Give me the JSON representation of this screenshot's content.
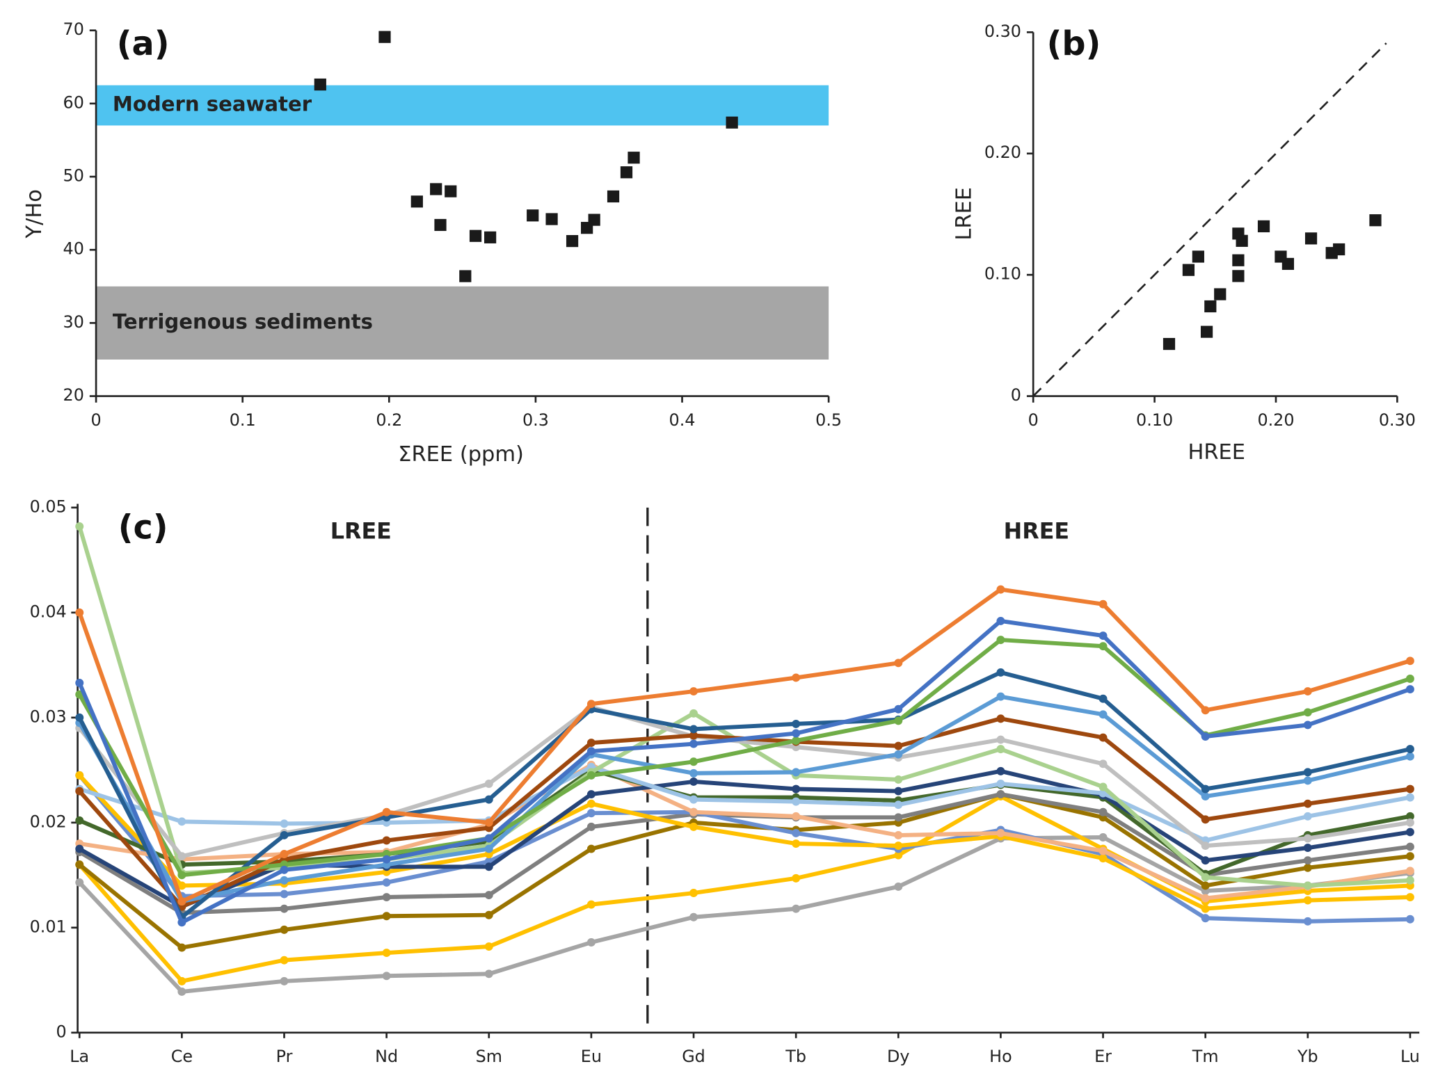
{
  "chart_data": [
    {
      "type": "scatter",
      "panel_label": "(a)",
      "xlabel": "ΣREE (ppm)",
      "ylabel": "Y/Ho",
      "xlim": [
        0,
        0.5
      ],
      "xticks": [
        0,
        0.1,
        0.2,
        0.3,
        0.4,
        0.5
      ],
      "ylim": [
        20,
        70
      ],
      "yticks": [
        20,
        30,
        40,
        50,
        60,
        70
      ],
      "color": "#1a1a1a",
      "bands": [
        {
          "label": "Modern seawater",
          "range": [
            57,
            62.5
          ],
          "color": "#4fc3f0"
        },
        {
          "label": "Terrigenous sediments",
          "range": [
            25,
            35
          ],
          "color": "#a6a6a6"
        }
      ],
      "x": [
        0.153,
        0.197,
        0.219,
        0.232,
        0.235,
        0.242,
        0.252,
        0.259,
        0.269,
        0.298,
        0.311,
        0.325,
        0.335,
        0.34,
        0.353,
        0.362,
        0.367,
        0.434
      ],
      "values": [
        62.6,
        69.1,
        46.6,
        48.3,
        43.4,
        48.0,
        36.4,
        41.9,
        41.7,
        44.7,
        44.2,
        41.2,
        43.0,
        44.1,
        47.3,
        50.6,
        52.6,
        57.4
      ]
    },
    {
      "type": "scatter",
      "panel_label": "(b)",
      "xlabel": "HREE",
      "ylabel": "LREE",
      "xlim": [
        0,
        0.3
      ],
      "xticks": [
        0,
        {
          "value": 0.1,
          "label": "0.10"
        },
        {
          "value": 0.2,
          "label": "0.20"
        },
        {
          "value": 0.3,
          "label": "0.30"
        }
      ],
      "ylim": [
        0,
        0.3
      ],
      "yticks": [
        0,
        {
          "value": 0.1,
          "label": "0.10"
        },
        {
          "value": 0.2,
          "label": "0.20"
        },
        {
          "value": 0.3,
          "label": "0.30"
        }
      ],
      "color": "#1a1a1a",
      "identity_line": true,
      "x": [
        0.112,
        0.128,
        0.136,
        0.143,
        0.146,
        0.154,
        0.169,
        0.169,
        0.169,
        0.172,
        0.19,
        0.204,
        0.21,
        0.229,
        0.246,
        0.252,
        0.282
      ],
      "values": [
        0.043,
        0.104,
        0.115,
        0.053,
        0.074,
        0.084,
        0.099,
        0.112,
        0.134,
        0.128,
        0.14,
        0.115,
        0.109,
        0.13,
        0.118,
        0.121,
        0.145
      ]
    },
    {
      "type": "line",
      "panel_label": "(c)",
      "annotations": [
        "LREE",
        "HREE"
      ],
      "categories": [
        "La",
        "Ce",
        "Pr",
        "Nd",
        "Sm",
        "Eu",
        "Gd",
        "Tb",
        "Dy",
        "Ho",
        "Er",
        "Tm",
        "Yb",
        "Lu"
      ],
      "ylim": [
        0,
        0.05
      ],
      "yticks": [
        0,
        0.01,
        0.02,
        0.03,
        0.04,
        0.05
      ],
      "series": [
        {
          "color": "#a5a5a5",
          "values": [
            0.0143,
            0.0039,
            0.0049,
            0.0054,
            0.0056,
            0.0086,
            0.011,
            0.0118,
            0.0139,
            0.0185,
            0.0186,
            0.0135,
            0.014,
            0.0152
          ]
        },
        {
          "color": "#ffc000",
          "values": [
            0.016,
            0.0049,
            0.0069,
            0.0076,
            0.0082,
            0.0122,
            0.0133,
            0.0147,
            0.0169,
            0.0225,
            0.0175,
            0.0125,
            0.0135,
            0.014
          ]
        },
        {
          "color": "#997300",
          "values": [
            0.016,
            0.0081,
            0.0098,
            0.0111,
            0.0112,
            0.0175,
            0.02,
            0.0193,
            0.02,
            0.0227,
            0.0205,
            0.014,
            0.0157,
            0.0168
          ]
        },
        {
          "color": "#7f7f7f",
          "values": [
            0.0172,
            0.0114,
            0.0118,
            0.0129,
            0.0131,
            0.0196,
            0.0208,
            0.0205,
            0.0205,
            0.0227,
            0.021,
            0.015,
            0.0164,
            0.0177
          ]
        },
        {
          "color": "#698ed0",
          "values": [
            0.0245,
            0.013,
            0.0132,
            0.0143,
            0.0163,
            0.0209,
            0.021,
            0.019,
            0.0175,
            0.0193,
            0.017,
            0.0109,
            0.0106,
            0.0108
          ]
        },
        {
          "color": "#ffc000",
          "values": [
            0.0245,
            0.014,
            0.0142,
            0.0153,
            0.017,
            0.0218,
            0.0196,
            0.018,
            0.0178,
            0.0187,
            0.0166,
            0.0118,
            0.0126,
            0.0129
          ]
        },
        {
          "color": "#f4b183",
          "values": [
            0.018,
            0.0165,
            0.017,
            0.0172,
            0.0198,
            0.0255,
            0.021,
            0.0206,
            0.0188,
            0.019,
            0.0173,
            0.0128,
            0.0139,
            0.0154
          ]
        },
        {
          "color": "#43682b",
          "values": [
            0.0202,
            0.016,
            0.0163,
            0.017,
            0.0182,
            0.025,
            0.0224,
            0.0224,
            0.0221,
            0.0236,
            0.0224,
            0.0151,
            0.0188,
            0.0206
          ]
        },
        {
          "color": "#264478",
          "values": [
            0.0175,
            0.012,
            0.016,
            0.0158,
            0.0158,
            0.0227,
            0.0239,
            0.0232,
            0.023,
            0.0249,
            0.0226,
            0.0164,
            0.0176,
            0.0191
          ]
        },
        {
          "color": "#9dc3e6",
          "values": [
            0.0232,
            0.0201,
            0.0199,
            0.02,
            0.0202,
            0.0253,
            0.0222,
            0.022,
            0.0217,
            0.0237,
            0.0228,
            0.0183,
            0.0206,
            0.0224
          ]
        },
        {
          "color": "#a9d18e",
          "values": [
            0.0482,
            0.0152,
            0.0157,
            0.0165,
            0.0178,
            0.0248,
            0.0304,
            0.0245,
            0.0241,
            0.027,
            0.0234,
            0.0148,
            0.014,
            0.0145
          ]
        },
        {
          "color": "#bfbfbf",
          "values": [
            0.029,
            0.0168,
            0.019,
            0.0207,
            0.0237,
            0.031,
            0.0282,
            0.0272,
            0.0262,
            0.0279,
            0.0256,
            0.0178,
            0.0185,
            0.02
          ]
        },
        {
          "color": "#9e480e",
          "values": [
            0.023,
            0.012,
            0.0165,
            0.0183,
            0.0195,
            0.0276,
            0.0283,
            0.0277,
            0.0273,
            0.0299,
            0.0281,
            0.0203,
            0.0218,
            0.0232
          ]
        },
        {
          "color": "#5b9bd5",
          "values": [
            0.0295,
            0.0125,
            0.0145,
            0.016,
            0.0175,
            0.0265,
            0.0247,
            0.0248,
            0.0265,
            0.032,
            0.0303,
            0.0225,
            0.024,
            0.0263
          ]
        },
        {
          "color": "#255e91",
          "values": [
            0.03,
            0.011,
            0.0188,
            0.0205,
            0.0222,
            0.0308,
            0.0289,
            0.0294,
            0.0298,
            0.0343,
            0.0318,
            0.0232,
            0.0248,
            0.027
          ]
        },
        {
          "color": "#70ad47",
          "values": [
            0.0322,
            0.015,
            0.016,
            0.017,
            0.0185,
            0.0245,
            0.0258,
            0.0278,
            0.0297,
            0.0374,
            0.0368,
            0.0283,
            0.0305,
            0.0337
          ]
        },
        {
          "color": "#4472c4",
          "values": [
            0.0333,
            0.0105,
            0.0155,
            0.0165,
            0.0185,
            0.0268,
            0.0275,
            0.0285,
            0.0308,
            0.0392,
            0.0378,
            0.0282,
            0.0293,
            0.0327
          ]
        },
        {
          "color": "#ed7d31",
          "values": [
            0.04,
            0.0125,
            0.017,
            0.021,
            0.02,
            0.0313,
            0.0325,
            0.0338,
            0.0352,
            0.0422,
            0.0408,
            0.0307,
            0.0325,
            0.0354
          ]
        }
      ]
    }
  ]
}
